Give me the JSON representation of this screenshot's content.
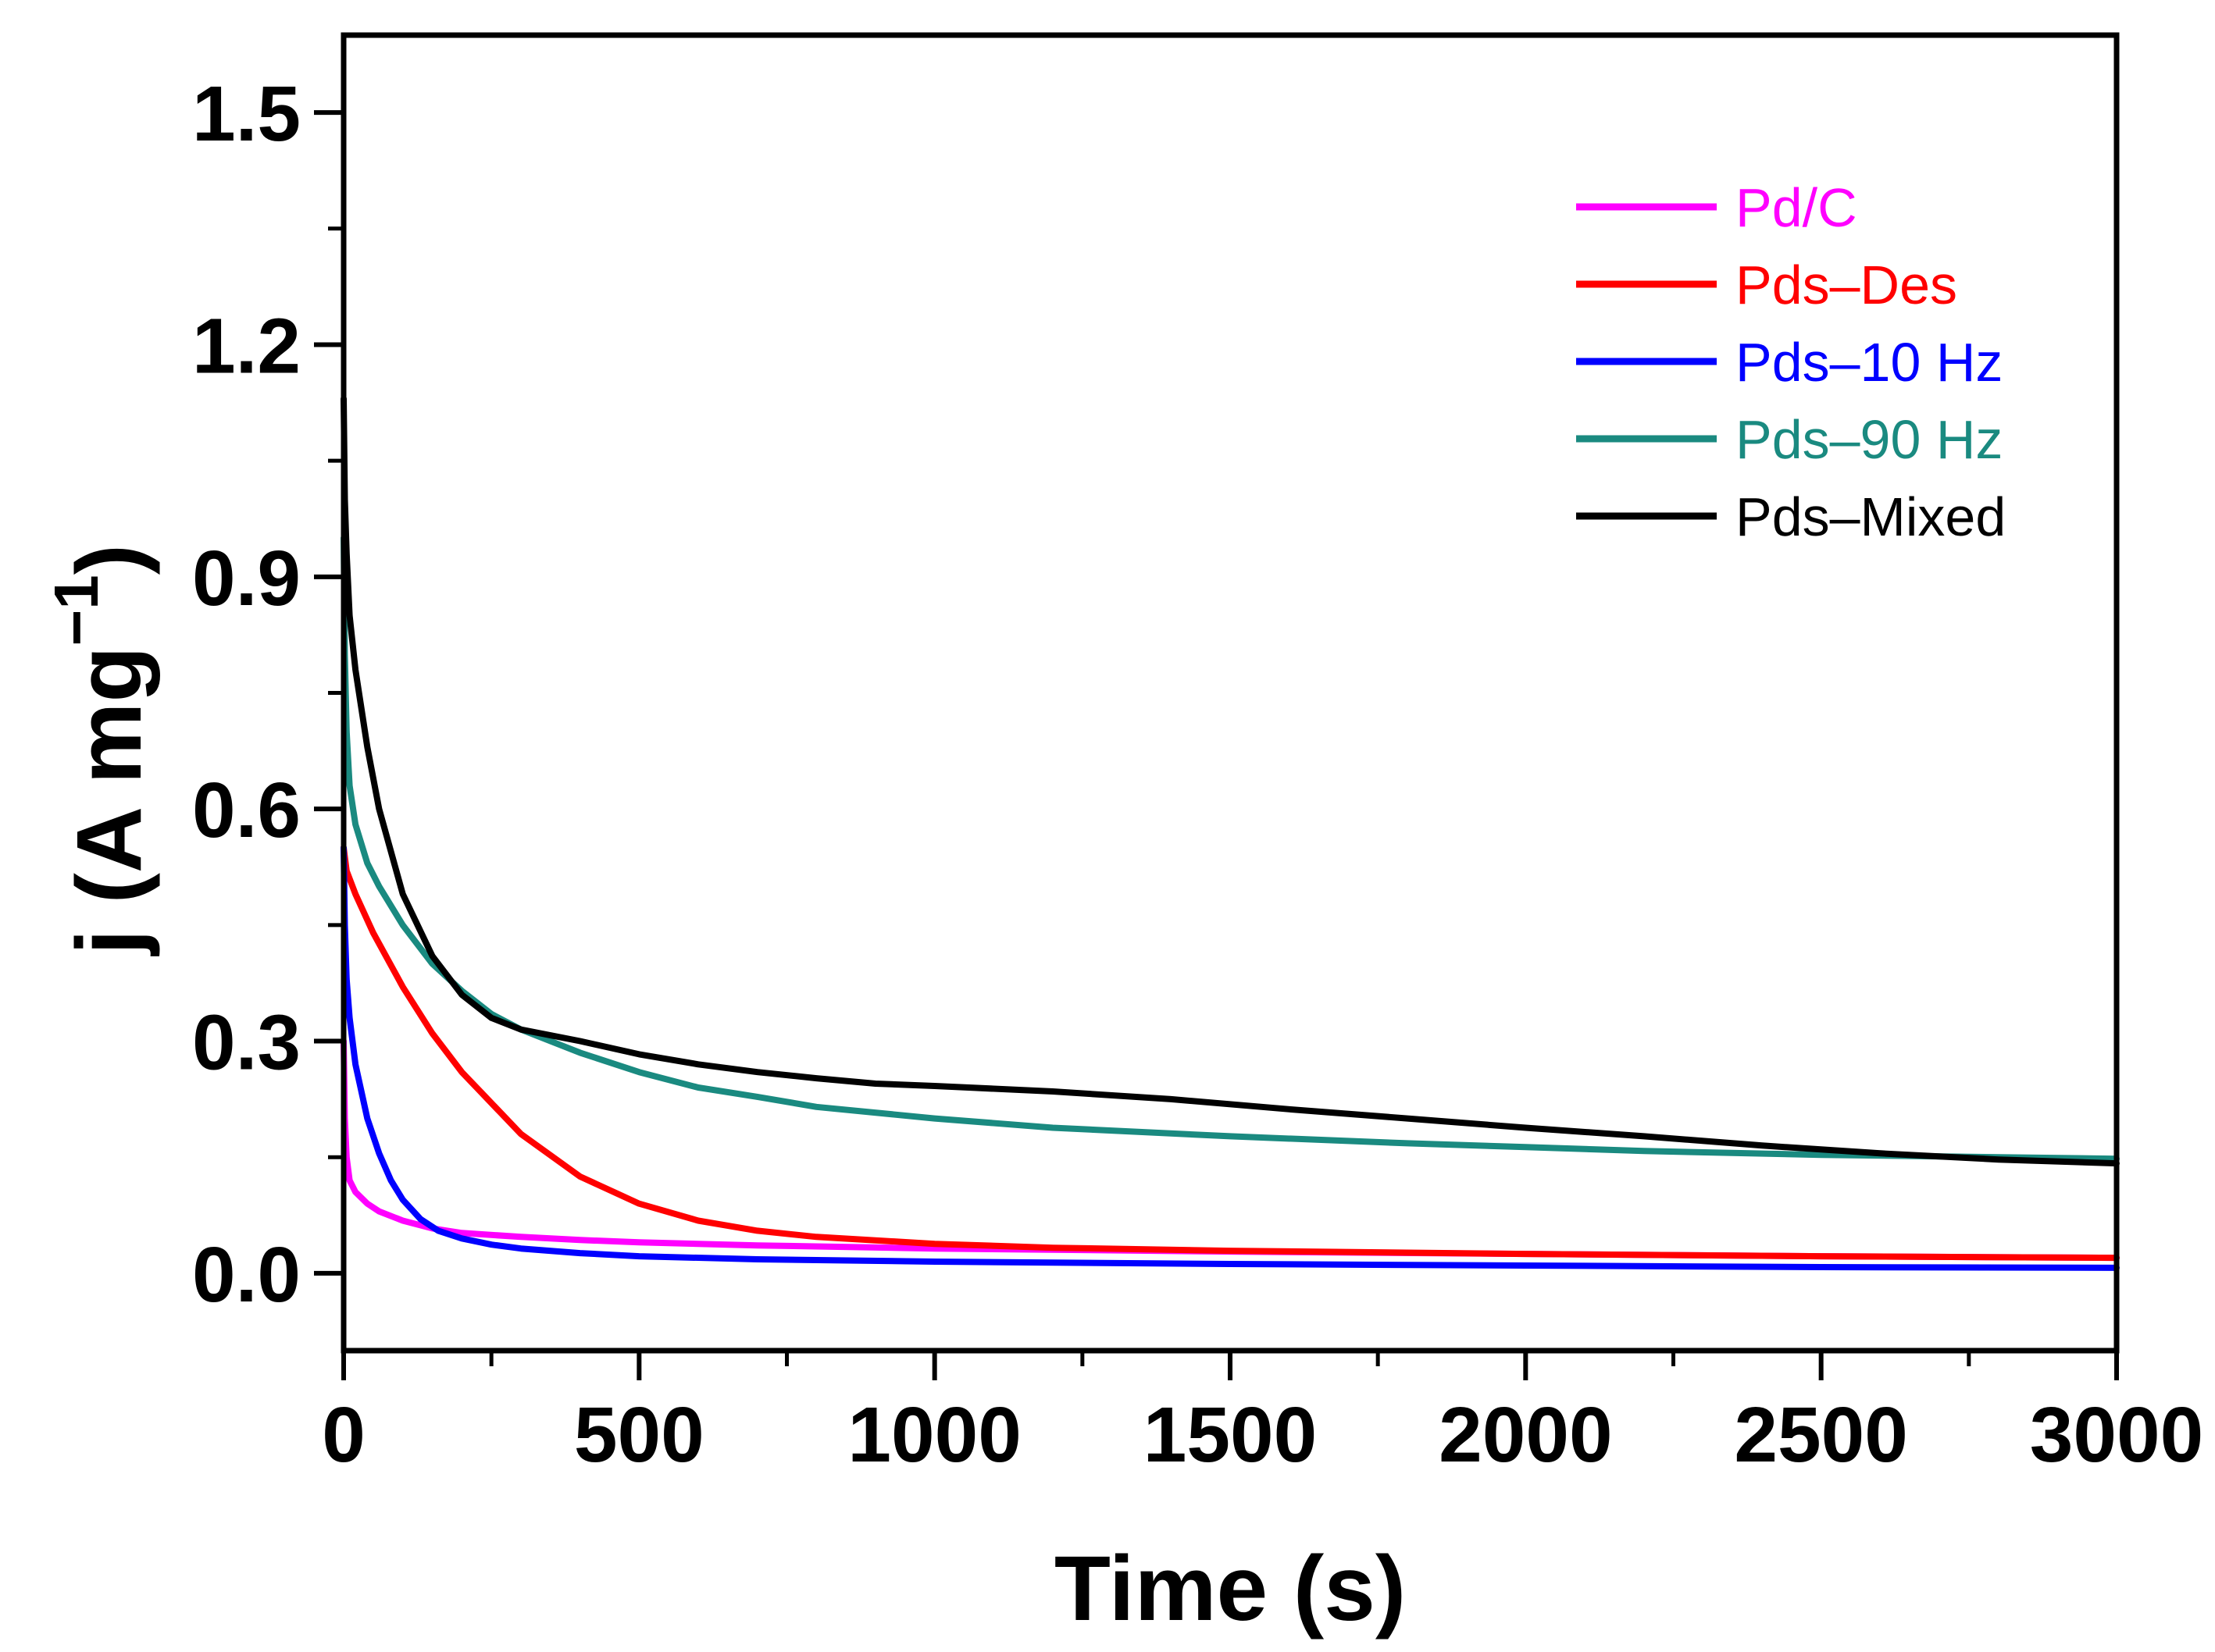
{
  "chart_data": {
    "type": "line",
    "title": "",
    "xlabel": "Time (s)",
    "ylabel_main": "j (A mg",
    "ylabel_sup": "−1",
    "ylabel_close": ")",
    "xlim": [
      0,
      3000
    ],
    "ylim": [
      -0.1,
      1.6
    ],
    "xticks": [
      0,
      500,
      1000,
      1500,
      2000,
      2500,
      3000
    ],
    "xtick_labels": [
      "0",
      "500",
      "1000",
      "1500",
      "2000",
      "2500",
      "3000"
    ],
    "yticks": [
      0.0,
      0.3,
      0.6,
      0.9,
      1.2,
      1.5
    ],
    "ytick_labels": [
      "0.0",
      "0.3",
      "0.6",
      "0.9",
      "1.2",
      "1.5"
    ],
    "grid": false,
    "legend_position": "top-right",
    "series": [
      {
        "name": "Pd/C",
        "color": "#ff00ff",
        "x": [
          0,
          2,
          5,
          10,
          20,
          40,
          60,
          100,
          150,
          200,
          300,
          400,
          500,
          700,
          1000,
          1500,
          2000,
          2500,
          3000
        ],
        "y": [
          0.3,
          0.2,
          0.15,
          0.12,
          0.105,
          0.09,
          0.08,
          0.068,
          0.058,
          0.052,
          0.047,
          0.043,
          0.04,
          0.036,
          0.032,
          0.028,
          0.025,
          0.022,
          0.02
        ]
      },
      {
        "name": "Pds–Des",
        "color": "#ff0000",
        "x": [
          0,
          5,
          20,
          50,
          100,
          150,
          200,
          300,
          400,
          500,
          600,
          700,
          800,
          1000,
          1200,
          1500,
          2000,
          2500,
          3000
        ],
        "y": [
          0.55,
          0.52,
          0.49,
          0.44,
          0.37,
          0.31,
          0.26,
          0.18,
          0.125,
          0.09,
          0.068,
          0.055,
          0.047,
          0.038,
          0.033,
          0.029,
          0.025,
          0.022,
          0.02
        ]
      },
      {
        "name": "Pds–10 Hz",
        "color": "#0000ff",
        "x": [
          0,
          2,
          5,
          10,
          20,
          40,
          60,
          80,
          100,
          130,
          160,
          200,
          250,
          300,
          400,
          500,
          700,
          1000,
          1500,
          2000,
          2500,
          3000
        ],
        "y": [
          0.55,
          0.45,
          0.38,
          0.33,
          0.27,
          0.2,
          0.155,
          0.12,
          0.095,
          0.07,
          0.055,
          0.045,
          0.037,
          0.032,
          0.026,
          0.022,
          0.018,
          0.015,
          0.012,
          0.01,
          0.008,
          0.007
        ]
      },
      {
        "name": "Pds–90 Hz",
        "color": "#1a8a80",
        "x": [
          0,
          2,
          5,
          10,
          20,
          40,
          60,
          100,
          150,
          200,
          250,
          300,
          400,
          500,
          600,
          700,
          800,
          1000,
          1200,
          1500,
          1800,
          2000,
          2200,
          2500,
          2800,
          3000
        ],
        "y": [
          0.95,
          0.8,
          0.7,
          0.63,
          0.58,
          0.53,
          0.5,
          0.45,
          0.4,
          0.365,
          0.335,
          0.315,
          0.285,
          0.26,
          0.24,
          0.228,
          0.215,
          0.2,
          0.188,
          0.177,
          0.168,
          0.163,
          0.158,
          0.153,
          0.15,
          0.148
        ]
      },
      {
        "name": "Pds–Mixed",
        "color": "#000000",
        "x": [
          0,
          2,
          5,
          10,
          20,
          40,
          60,
          100,
          150,
          200,
          250,
          300,
          400,
          500,
          600,
          700,
          800,
          900,
          1000,
          1200,
          1400,
          1600,
          1800,
          2000,
          2200,
          2400,
          2600,
          2800,
          3000
        ],
        "y": [
          1.13,
          1.0,
          0.93,
          0.85,
          0.78,
          0.68,
          0.6,
          0.49,
          0.41,
          0.36,
          0.33,
          0.315,
          0.3,
          0.283,
          0.27,
          0.26,
          0.252,
          0.245,
          0.242,
          0.235,
          0.225,
          0.212,
          0.2,
          0.188,
          0.177,
          0.165,
          0.155,
          0.147,
          0.142
        ]
      }
    ]
  }
}
